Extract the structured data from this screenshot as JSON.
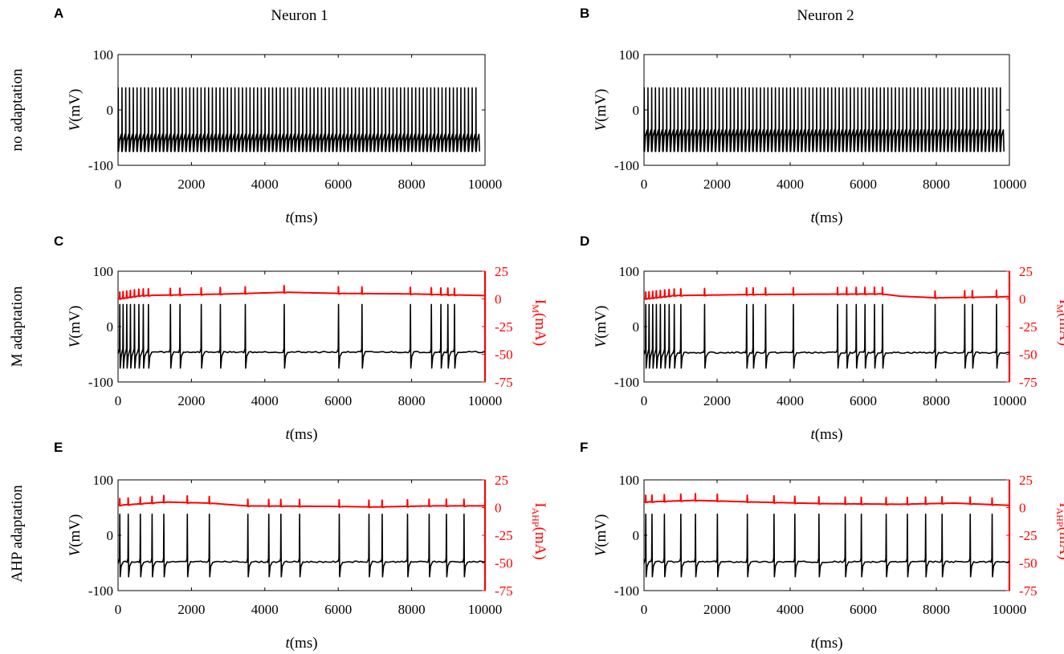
{
  "figure": {
    "col_titles": [
      "Neuron 1",
      "Neuron 2"
    ],
    "row_titles": [
      "no adaptation",
      "M adaptation",
      "AHP adaptation"
    ]
  },
  "chart_data": [
    {
      "panel": "A",
      "type": "line",
      "row": "no adaptation",
      "neuron": "Neuron 1",
      "xlabel": "t(ms)",
      "ylabel": "V(mV)",
      "xlim": [
        0,
        10000
      ],
      "ylim": [
        -100,
        100
      ],
      "xticks": [
        0,
        2000,
        4000,
        6000,
        8000,
        10000
      ],
      "yticks": [
        -100,
        0,
        100
      ],
      "trace": {
        "style": "tonic",
        "spike_count": 96,
        "t_end": 9850,
        "peak": 40,
        "trough": -75,
        "baseline": -48
      },
      "series": [
        {
          "name": "V",
          "color": "#000000"
        }
      ]
    },
    {
      "panel": "B",
      "type": "line",
      "row": "no adaptation",
      "neuron": "Neuron 2",
      "xlabel": "t(ms)",
      "ylabel": "V(mV)",
      "xlim": [
        0,
        10000
      ],
      "ylim": [
        -100,
        100
      ],
      "xticks": [
        0,
        2000,
        4000,
        6000,
        8000,
        10000
      ],
      "yticks": [
        -100,
        0,
        100
      ],
      "trace": {
        "style": "tonic",
        "spike_count": 96,
        "t_end": 9850,
        "peak": 40,
        "trough": -75,
        "baseline": -40
      },
      "series": [
        {
          "name": "V",
          "color": "#000000"
        }
      ]
    },
    {
      "panel": "C",
      "type": "line",
      "row": "M adaptation",
      "neuron": "Neuron 1",
      "xlabel": "t(ms)",
      "ylabel": "V(mV)",
      "y2label": "IM(mA)",
      "y2color": "#ff0000",
      "xlim": [
        0,
        10000
      ],
      "ylim": [
        -100,
        100
      ],
      "y2lim": [
        -75,
        25
      ],
      "xticks": [
        0,
        2000,
        4000,
        6000,
        8000,
        10000
      ],
      "yticks": [
        -100,
        0,
        100
      ],
      "y2ticks": [
        25,
        0,
        -25,
        -50,
        -75
      ],
      "spike_times": [
        40,
        130,
        230,
        330,
        440,
        560,
        680,
        820,
        1420,
        1680,
        2260,
        2780,
        3460,
        4520,
        6000,
        6640,
        7960,
        8530,
        8790,
        8980,
        9160
      ],
      "v_baseline": -46,
      "v_peak": 40,
      "v_trough": -75,
      "i_baseline": [
        [
          0,
          0
        ],
        [
          600,
          3
        ],
        [
          3000,
          4.5
        ],
        [
          4600,
          6
        ],
        [
          6000,
          5
        ],
        [
          8000,
          4.5
        ],
        [
          10000,
          3
        ]
      ],
      "series": [
        {
          "name": "V",
          "color": "#000000"
        },
        {
          "name": "IM",
          "color": "#ff0000",
          "axis": "right"
        }
      ]
    },
    {
      "panel": "D",
      "type": "line",
      "row": "M adaptation",
      "neuron": "Neuron 2",
      "xlabel": "t(ms)",
      "ylabel": "V(mV)",
      "y2label": "IM(mA)",
      "y2color": "#ff0000",
      "xlim": [
        0,
        10000
      ],
      "ylim": [
        -100,
        100
      ],
      "y2lim": [
        -75,
        25
      ],
      "xticks": [
        0,
        2000,
        4000,
        6000,
        8000,
        10000
      ],
      "yticks": [
        -100,
        0,
        100
      ],
      "y2ticks": [
        25,
        0,
        -25,
        -50,
        -75
      ],
      "spike_times": [
        40,
        130,
        230,
        330,
        440,
        560,
        680,
        820,
        1000,
        1650,
        2800,
        2980,
        3320,
        4080,
        5290,
        5540,
        5800,
        6040,
        6300,
        6520,
        7960,
        8770,
        8980,
        9640
      ],
      "v_baseline": -47,
      "v_peak": 40,
      "v_trough": -75,
      "i_baseline": [
        [
          0,
          0
        ],
        [
          800,
          3
        ],
        [
          3000,
          4
        ],
        [
          6500,
          4.5
        ],
        [
          7000,
          2.5
        ],
        [
          8000,
          1
        ],
        [
          10000,
          2
        ]
      ],
      "series": [
        {
          "name": "V",
          "color": "#000000"
        },
        {
          "name": "IM",
          "color": "#ff0000",
          "axis": "right"
        }
      ]
    },
    {
      "panel": "E",
      "type": "line",
      "row": "AHP adaptation",
      "neuron": "Neuron 1",
      "xlabel": "t(ms)",
      "ylabel": "V(mV)",
      "y2label": "IAHP(mA)",
      "y2color": "#ff0000",
      "xlim": [
        0,
        10000
      ],
      "ylim": [
        -100,
        100
      ],
      "y2lim": [
        -75,
        25
      ],
      "xticks": [
        0,
        2000,
        4000,
        6000,
        8000,
        10000
      ],
      "yticks": [
        -100,
        0,
        100
      ],
      "y2ticks": [
        25,
        0,
        -25,
        -50,
        -75
      ],
      "spike_times": [
        40,
        270,
        600,
        920,
        1240,
        1880,
        2480,
        3530,
        4100,
        4430,
        4940,
        6020,
        6830,
        7190,
        7880,
        8470,
        8940,
        9420
      ],
      "v_baseline": -48,
      "v_peak": 38,
      "v_trough": -75,
      "i_baseline": [
        [
          0,
          2
        ],
        [
          1300,
          5
        ],
        [
          2500,
          4
        ],
        [
          3500,
          1.5
        ],
        [
          6000,
          1
        ],
        [
          7000,
          0.5
        ],
        [
          8500,
          1.5
        ],
        [
          10000,
          1.5
        ]
      ],
      "series": [
        {
          "name": "V",
          "color": "#000000"
        },
        {
          "name": "IAHP",
          "color": "#ff0000",
          "axis": "right"
        }
      ]
    },
    {
      "panel": "F",
      "type": "line",
      "row": "AHP adaptation",
      "neuron": "Neuron 2",
      "xlabel": "t(ms)",
      "ylabel": "V(mV)",
      "y2label": "IAHP(mA)",
      "y2color": "#ff0000",
      "xlim": [
        0,
        10000
      ],
      "ylim": [
        -100,
        100
      ],
      "y2lim": [
        -75,
        25
      ],
      "xticks": [
        0,
        2000,
        4000,
        6000,
        8000,
        10000
      ],
      "yticks": [
        -100,
        0,
        100
      ],
      "y2ticks": [
        25,
        0,
        -25,
        -50,
        -75
      ],
      "spike_times": [
        40,
        210,
        550,
        1000,
        1400,
        2000,
        2820,
        3550,
        4120,
        4780,
        5500,
        5940,
        6620,
        7200,
        7700,
        8150,
        8920,
        9520
      ],
      "v_baseline": -48,
      "v_peak": 38,
      "v_trough": -75,
      "i_baseline": [
        [
          0,
          5
        ],
        [
          1400,
          6.5
        ],
        [
          3000,
          5
        ],
        [
          5000,
          3.5
        ],
        [
          7000,
          3
        ],
        [
          8500,
          4
        ],
        [
          10000,
          2
        ]
      ],
      "series": [
        {
          "name": "V",
          "color": "#000000"
        },
        {
          "name": "IAHP",
          "color": "#ff0000",
          "axis": "right"
        }
      ]
    }
  ]
}
